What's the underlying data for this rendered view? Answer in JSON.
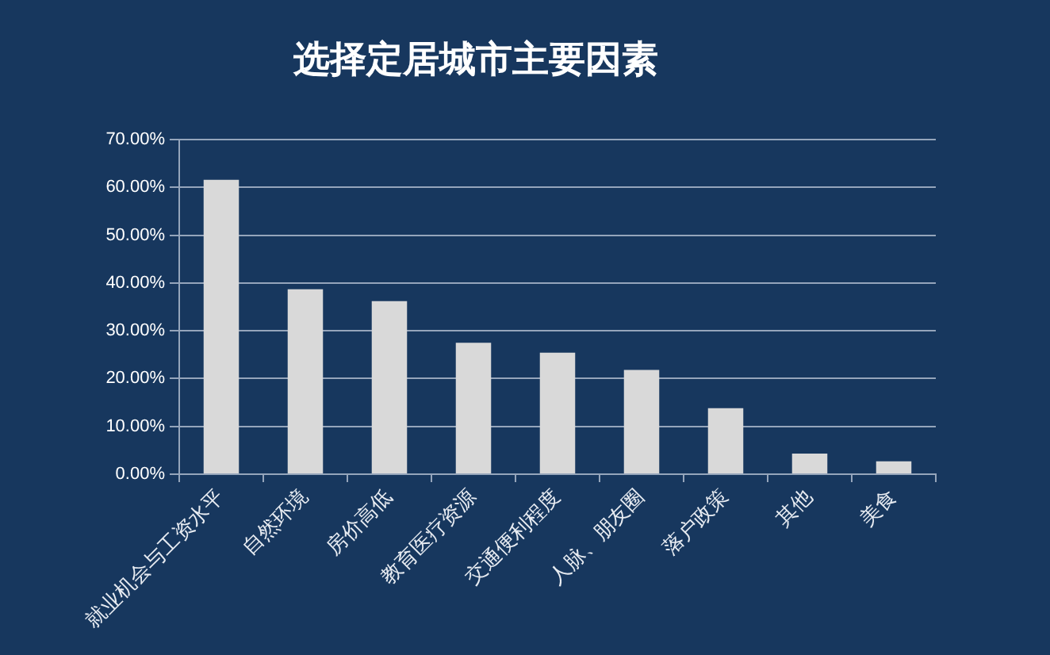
{
  "chart_data": {
    "type": "bar",
    "title": "选择定居城市主要因素",
    "categories": [
      "就业机会与工资水平",
      "自然环境",
      "房价高低",
      "教育医疗资源",
      "交通便利程度",
      "人脉、朋友圈",
      "落户政策",
      "其他",
      "美食"
    ],
    "values": [
      61.6,
      38.7,
      36.2,
      27.5,
      25.4,
      21.8,
      13.8,
      4.3,
      2.7
    ],
    "color": "#d9d9d9",
    "ylim": [
      0,
      70
    ],
    "yticks": [
      {
        "value": 0,
        "label": "0.00%"
      },
      {
        "value": 10,
        "label": "10.00%"
      },
      {
        "value": 20,
        "label": "20.00%"
      },
      {
        "value": 30,
        "label": "30.00%"
      },
      {
        "value": 40,
        "label": "40.00%"
      },
      {
        "value": 50,
        "label": "50.00%"
      },
      {
        "value": 60,
        "label": "60.00%"
      },
      {
        "value": 70,
        "label": "70.00%"
      }
    ],
    "grid": "y"
  }
}
